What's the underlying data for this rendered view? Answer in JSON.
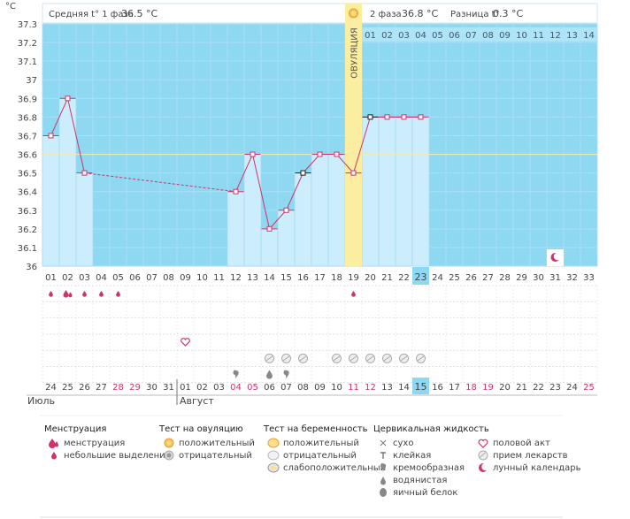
{
  "chart_data": {
    "type": "line",
    "y_axis": {
      "unit": "°C",
      "ticks": [
        "37.3",
        "37.2",
        "37.1",
        "37",
        "36.9",
        "36.8",
        "36.7",
        "36.6",
        "36.5",
        "36.4",
        "36.3",
        "36.2",
        "36.1",
        "36"
      ],
      "ylim": [
        36.0,
        37.3
      ]
    },
    "header": {
      "phase1_label": "Средняя t° 1 фаза",
      "phase1_value": "36.5 °C",
      "phase2_label": "2 фаза",
      "phase2_value": "36.8 °C",
      "diff_label": "Разница t°",
      "diff_value": "0.3 °C"
    },
    "ovulation_label": "ОВУЛЯЦИЯ",
    "ovulation_day": 19,
    "cycle_days": [
      "01",
      "02",
      "03",
      "04",
      "05",
      "06",
      "07",
      "08",
      "09",
      "10",
      "11",
      "12",
      "13",
      "14",
      "15",
      "16",
      "17",
      "18",
      "19",
      "20",
      "21",
      "22",
      "23",
      "24",
      "25",
      "26",
      "27",
      "28",
      "29",
      "30",
      "31",
      "32",
      "33"
    ],
    "current_day": 23,
    "phase2_days": [
      "01",
      "02",
      "03",
      "04",
      "05",
      "06",
      "07",
      "08",
      "09",
      "10",
      "11",
      "12",
      "13",
      "14"
    ],
    "series": [
      {
        "points": [
          {
            "day": 1,
            "temp": 36.7
          },
          {
            "day": 2,
            "temp": 36.9
          },
          {
            "day": 3,
            "temp": 36.5
          },
          {
            "day": 12,
            "temp": 36.4
          },
          {
            "day": 13,
            "temp": 36.6
          },
          {
            "day": 14,
            "temp": 36.2
          },
          {
            "day": 15,
            "temp": 36.3
          },
          {
            "day": 16,
            "temp": 36.5
          },
          {
            "day": 17,
            "temp": 36.6
          },
          {
            "day": 18,
            "temp": 36.6
          },
          {
            "day": 19,
            "temp": 36.5
          },
          {
            "day": 20,
            "temp": 36.8
          },
          {
            "day": 21,
            "temp": 36.8
          },
          {
            "day": 22,
            "temp": 36.8
          },
          {
            "day": 23,
            "temp": 36.8
          }
        ],
        "dashed_gap": [
          3,
          12
        ],
        "black_markers": [
          16,
          20
        ]
      }
    ],
    "coverline": 36.6,
    "calendar_dates": [
      {
        "d": "24",
        "red": false
      },
      {
        "d": "25",
        "red": false
      },
      {
        "d": "26",
        "red": false
      },
      {
        "d": "27",
        "red": false
      },
      {
        "d": "28",
        "red": true
      },
      {
        "d": "29",
        "red": true
      },
      {
        "d": "30",
        "red": false
      },
      {
        "d": "31",
        "red": false
      },
      {
        "d": "01",
        "red": false
      },
      {
        "d": "02",
        "red": false
      },
      {
        "d": "03",
        "red": false
      },
      {
        "d": "04",
        "red": true
      },
      {
        "d": "05",
        "red": true
      },
      {
        "d": "06",
        "red": false
      },
      {
        "d": "07",
        "red": false
      },
      {
        "d": "08",
        "red": false
      },
      {
        "d": "09",
        "red": false
      },
      {
        "d": "10",
        "red": false
      },
      {
        "d": "11",
        "red": true
      },
      {
        "d": "12",
        "red": true
      },
      {
        "d": "13",
        "red": false
      },
      {
        "d": "14",
        "red": false
      },
      {
        "d": "15",
        "red": false
      },
      {
        "d": "16",
        "red": false
      },
      {
        "d": "17",
        "red": false
      },
      {
        "d": "18",
        "red": true
      },
      {
        "d": "19",
        "red": true
      },
      {
        "d": "20",
        "red": false
      },
      {
        "d": "21",
        "red": false
      },
      {
        "d": "22",
        "red": false
      },
      {
        "d": "23",
        "red": false
      },
      {
        "d": "24",
        "red": false
      },
      {
        "d": "25",
        "red": true
      }
    ],
    "months": [
      "Июль",
      "Август"
    ],
    "events": {
      "menstruation_heavy": [
        2
      ],
      "menstruation_light": [
        1,
        3,
        4,
        5,
        19
      ],
      "intercourse": [
        9
      ],
      "medication": [
        14,
        15,
        16,
        18,
        19,
        20,
        21,
        22,
        23
      ],
      "cervical_creamy": [
        12,
        15
      ],
      "cervical_watery": [
        14
      ],
      "lunar": [
        31
      ]
    }
  },
  "legend": {
    "menstruation": {
      "title": "Менструация",
      "items": [
        "менструация",
        "небольшие выделения"
      ]
    },
    "ovulation_test": {
      "title": "Тест на овуляцию",
      "items": [
        "положительный",
        "отрицательный"
      ]
    },
    "pregnancy_test": {
      "title": "Тест на беременность",
      "items": [
        "положительный",
        "отрицательный",
        "слабоположительный"
      ]
    },
    "cervical": {
      "title": "Цервикальная жидкость",
      "items": [
        "сухо",
        "клейкая",
        "кремообразная",
        "водянистая",
        "яичный белок"
      ]
    },
    "other": {
      "items": [
        "половой акт",
        "прием лекарств",
        "лунный календарь"
      ]
    }
  },
  "colors": {
    "plot_bg": "#8ed8f2",
    "bar": "#cceefc",
    "bar_stroke": "#9fd6ee",
    "ovulation": "#fbeea0",
    "line": "#d0336c",
    "coverline": "#f5e9a8",
    "highlight": "#8ed8f2",
    "red_date": "#d0336c"
  }
}
